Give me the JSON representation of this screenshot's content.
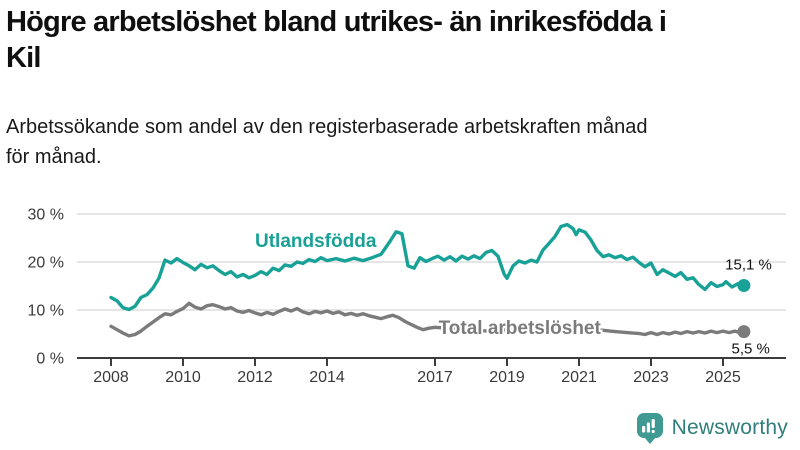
{
  "header": {
    "title_lines": [
      "Högre arbetslöshet bland utrikes- än inrikesfödda i",
      "Kil"
    ],
    "subtitle_lines": [
      "Arbetssökande som andel av den registerbaserade arbetskraften månad",
      "för månad."
    ]
  },
  "chart_data": {
    "type": "line",
    "title": "Högre arbetslöshet bland utrikes- än inrikesfödda i Kil",
    "subtitle": "Arbetssökande som andel av den registerbaserade arbetskraften månad för månad.",
    "x_unit": "year",
    "x_range": [
      2007.7,
      2026.2
    ],
    "ylim": [
      0,
      31
    ],
    "grid": "horizontal",
    "legend_position": "inline-labels",
    "colors": {
      "grid": "#d8d8d8",
      "axis": "#3c3c3c",
      "tick_text": "#3a3a3a",
      "end_label_text": "#141414"
    },
    "y_ticks": [
      {
        "v": 0,
        "label": "0 %"
      },
      {
        "v": 10,
        "label": "10 %"
      },
      {
        "v": 20,
        "label": "20 %"
      },
      {
        "v": 30,
        "label": "30 %"
      }
    ],
    "x_ticks": [
      {
        "v": 2008,
        "label": "2008"
      },
      {
        "v": 2010,
        "label": "2010"
      },
      {
        "v": 2012,
        "label": "2012"
      },
      {
        "v": 2014,
        "label": "2014"
      },
      {
        "v": 2017,
        "label": "2017"
      },
      {
        "v": 2019,
        "label": "2019"
      },
      {
        "v": 2021,
        "label": "2021"
      },
      {
        "v": 2023,
        "label": "2023"
      },
      {
        "v": 2025,
        "label": "2025"
      }
    ],
    "series": [
      {
        "name": "Utlandsfödda",
        "color": "#18a196",
        "label_pos": [
          2012.0,
          24.4
        ],
        "end_value": 15.1,
        "end_value_label": "15,1 %",
        "end_label_offset": [
          28,
          -16
        ],
        "points": [
          [
            2008.0,
            12.6
          ],
          [
            2008.17,
            11.9
          ],
          [
            2008.33,
            10.5
          ],
          [
            2008.5,
            10.1
          ],
          [
            2008.67,
            10.8
          ],
          [
            2008.83,
            12.6
          ],
          [
            2009.0,
            13.2
          ],
          [
            2009.17,
            14.6
          ],
          [
            2009.33,
            16.6
          ],
          [
            2009.5,
            20.4
          ],
          [
            2009.67,
            19.8
          ],
          [
            2009.83,
            20.7
          ],
          [
            2010.0,
            19.9
          ],
          [
            2010.17,
            19.2
          ],
          [
            2010.33,
            18.4
          ],
          [
            2010.5,
            19.5
          ],
          [
            2010.67,
            18.8
          ],
          [
            2010.83,
            19.2
          ],
          [
            2011.0,
            18.2
          ],
          [
            2011.17,
            17.4
          ],
          [
            2011.33,
            18.0
          ],
          [
            2011.5,
            16.9
          ],
          [
            2011.67,
            17.4
          ],
          [
            2011.83,
            16.7
          ],
          [
            2012.0,
            17.2
          ],
          [
            2012.17,
            18.0
          ],
          [
            2012.33,
            17.4
          ],
          [
            2012.5,
            18.7
          ],
          [
            2012.67,
            18.2
          ],
          [
            2012.83,
            19.4
          ],
          [
            2013.0,
            19.1
          ],
          [
            2013.17,
            20.0
          ],
          [
            2013.33,
            19.7
          ],
          [
            2013.5,
            20.5
          ],
          [
            2013.67,
            20.1
          ],
          [
            2013.83,
            20.9
          ],
          [
            2014.0,
            20.3
          ],
          [
            2014.25,
            20.7
          ],
          [
            2014.5,
            20.2
          ],
          [
            2014.75,
            20.8
          ],
          [
            2015.0,
            20.3
          ],
          [
            2015.25,
            20.9
          ],
          [
            2015.5,
            21.6
          ],
          [
            2015.75,
            24.3
          ],
          [
            2015.92,
            26.3
          ],
          [
            2016.08,
            25.9
          ],
          [
            2016.25,
            19.2
          ],
          [
            2016.42,
            18.7
          ],
          [
            2016.58,
            20.9
          ],
          [
            2016.75,
            20.1
          ],
          [
            2016.92,
            20.7
          ],
          [
            2017.08,
            21.2
          ],
          [
            2017.25,
            20.4
          ],
          [
            2017.42,
            21.1
          ],
          [
            2017.58,
            20.2
          ],
          [
            2017.75,
            21.2
          ],
          [
            2017.92,
            20.6
          ],
          [
            2018.08,
            21.3
          ],
          [
            2018.25,
            20.7
          ],
          [
            2018.42,
            22.0
          ],
          [
            2018.58,
            22.4
          ],
          [
            2018.75,
            21.2
          ],
          [
            2018.92,
            17.5
          ],
          [
            2019.0,
            16.6
          ],
          [
            2019.17,
            19.2
          ],
          [
            2019.33,
            20.2
          ],
          [
            2019.5,
            19.8
          ],
          [
            2019.67,
            20.4
          ],
          [
            2019.83,
            20.0
          ],
          [
            2020.0,
            22.5
          ],
          [
            2020.17,
            23.9
          ],
          [
            2020.33,
            25.3
          ],
          [
            2020.5,
            27.4
          ],
          [
            2020.67,
            27.8
          ],
          [
            2020.83,
            27.0
          ],
          [
            2020.92,
            25.7
          ],
          [
            2021.0,
            26.7
          ],
          [
            2021.17,
            26.2
          ],
          [
            2021.33,
            24.6
          ],
          [
            2021.5,
            22.4
          ],
          [
            2021.67,
            21.1
          ],
          [
            2021.83,
            21.5
          ],
          [
            2022.0,
            20.9
          ],
          [
            2022.17,
            21.3
          ],
          [
            2022.33,
            20.5
          ],
          [
            2022.5,
            21.0
          ],
          [
            2022.67,
            19.9
          ],
          [
            2022.83,
            19.0
          ],
          [
            2023.0,
            19.8
          ],
          [
            2023.17,
            17.4
          ],
          [
            2023.33,
            18.4
          ],
          [
            2023.5,
            17.7
          ],
          [
            2023.67,
            17.0
          ],
          [
            2023.83,
            17.8
          ],
          [
            2024.0,
            16.4
          ],
          [
            2024.17,
            16.7
          ],
          [
            2024.33,
            15.3
          ],
          [
            2024.5,
            14.3
          ],
          [
            2024.67,
            15.7
          ],
          [
            2024.83,
            14.9
          ],
          [
            2025.0,
            15.3
          ],
          [
            2025.08,
            15.9
          ],
          [
            2025.25,
            14.8
          ],
          [
            2025.42,
            15.5
          ],
          [
            2025.58,
            15.1
          ]
        ]
      },
      {
        "name": "Total arbetslöshet",
        "color": "#7b7b7b",
        "label_pos": [
          2017.1,
          6.25
        ],
        "end_value": 5.5,
        "end_value_label": "5,5 %",
        "end_label_offset": [
          26,
          22
        ],
        "points": [
          [
            2008.0,
            6.6
          ],
          [
            2008.17,
            5.9
          ],
          [
            2008.33,
            5.2
          ],
          [
            2008.5,
            4.6
          ],
          [
            2008.67,
            4.9
          ],
          [
            2008.83,
            5.6
          ],
          [
            2009.0,
            6.6
          ],
          [
            2009.17,
            7.5
          ],
          [
            2009.33,
            8.4
          ],
          [
            2009.5,
            9.2
          ],
          [
            2009.67,
            9.0
          ],
          [
            2009.83,
            9.7
          ],
          [
            2010.0,
            10.3
          ],
          [
            2010.17,
            11.4
          ],
          [
            2010.33,
            10.6
          ],
          [
            2010.5,
            10.2
          ],
          [
            2010.67,
            10.9
          ],
          [
            2010.83,
            11.1
          ],
          [
            2011.0,
            10.7
          ],
          [
            2011.17,
            10.2
          ],
          [
            2011.33,
            10.5
          ],
          [
            2011.5,
            9.8
          ],
          [
            2011.67,
            9.5
          ],
          [
            2011.83,
            9.9
          ],
          [
            2012.0,
            9.4
          ],
          [
            2012.17,
            9.0
          ],
          [
            2012.33,
            9.5
          ],
          [
            2012.5,
            9.1
          ],
          [
            2012.67,
            9.7
          ],
          [
            2012.83,
            10.2
          ],
          [
            2013.0,
            9.8
          ],
          [
            2013.17,
            10.3
          ],
          [
            2013.33,
            9.6
          ],
          [
            2013.5,
            9.2
          ],
          [
            2013.67,
            9.7
          ],
          [
            2013.83,
            9.4
          ],
          [
            2014.0,
            9.8
          ],
          [
            2014.17,
            9.3
          ],
          [
            2014.33,
            9.6
          ],
          [
            2014.5,
            9.0
          ],
          [
            2014.67,
            9.3
          ],
          [
            2014.83,
            8.9
          ],
          [
            2015.0,
            9.2
          ],
          [
            2015.17,
            8.8
          ],
          [
            2015.33,
            8.5
          ],
          [
            2015.5,
            8.2
          ],
          [
            2015.67,
            8.6
          ],
          [
            2015.83,
            8.9
          ],
          [
            2016.0,
            8.4
          ],
          [
            2016.17,
            7.6
          ],
          [
            2016.33,
            7.0
          ],
          [
            2016.5,
            6.4
          ],
          [
            2016.67,
            5.9
          ],
          [
            2016.83,
            6.2
          ],
          [
            2017.0,
            6.4
          ],
          [
            2017.5,
            6.1
          ],
          [
            2018.0,
            5.8
          ],
          [
            2018.5,
            5.6
          ],
          [
            2019.0,
            5.9
          ],
          [
            2019.5,
            5.7
          ],
          [
            2020.0,
            6.1
          ],
          [
            2020.5,
            6.7
          ],
          [
            2021.0,
            6.4
          ],
          [
            2021.5,
            5.9
          ],
          [
            2022.0,
            5.5
          ],
          [
            2022.33,
            5.3
          ],
          [
            2022.67,
            5.1
          ],
          [
            2022.83,
            4.9
          ],
          [
            2023.0,
            5.3
          ],
          [
            2023.17,
            4.9
          ],
          [
            2023.33,
            5.3
          ],
          [
            2023.5,
            5.0
          ],
          [
            2023.67,
            5.4
          ],
          [
            2023.83,
            5.1
          ],
          [
            2024.0,
            5.5
          ],
          [
            2024.17,
            5.2
          ],
          [
            2024.33,
            5.5
          ],
          [
            2024.5,
            5.2
          ],
          [
            2024.67,
            5.6
          ],
          [
            2024.83,
            5.3
          ],
          [
            2025.0,
            5.6
          ],
          [
            2025.17,
            5.3
          ],
          [
            2025.33,
            5.6
          ],
          [
            2025.42,
            5.4
          ],
          [
            2025.58,
            5.5
          ]
        ]
      }
    ]
  },
  "footer": {
    "brand": "Newsworthy",
    "brand_color": "#2f7f7b",
    "badge_color": "#3e9a93",
    "badge_icon": "bar-chart-pin-icon"
  }
}
